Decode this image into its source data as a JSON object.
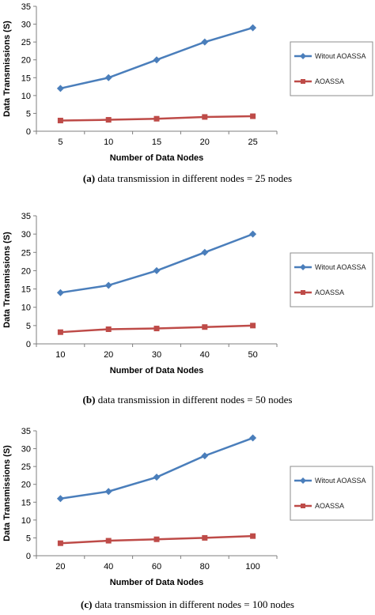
{
  "chart_data": [
    {
      "type": "line",
      "panel_label": "(a)",
      "caption": "data transmission in different  nodes = 25 nodes",
      "xlabel": "Number of Data Nodes",
      "ylabel": "Data Transmissions  (S)",
      "categories": [
        "5",
        "10",
        "15",
        "20",
        "25"
      ],
      "ylim": [
        0,
        35
      ],
      "yticks": [
        0,
        5,
        10,
        15,
        20,
        25,
        30,
        35
      ],
      "grid": false,
      "legend_position": "right",
      "series": [
        {
          "name": "Witout AOASSA",
          "color": "#4a7ebb",
          "marker": "diamond",
          "values": [
            12,
            15,
            20,
            25,
            29
          ]
        },
        {
          "name": "AOASSA",
          "color": "#be4b48",
          "marker": "square",
          "values": [
            3,
            3.2,
            3.5,
            4,
            4.2
          ]
        }
      ]
    },
    {
      "type": "line",
      "panel_label": "(b)",
      "caption": "data transmission in different  nodes = 50 nodes",
      "xlabel": "Number of Data Nodes",
      "ylabel": "Data Transmissions  (S)",
      "categories": [
        "10",
        "20",
        "30",
        "40",
        "50"
      ],
      "ylim": [
        0,
        35
      ],
      "yticks": [
        0,
        5,
        10,
        15,
        20,
        25,
        30,
        35
      ],
      "grid": false,
      "legend_position": "right",
      "series": [
        {
          "name": "Witout AOASSA",
          "color": "#4a7ebb",
          "marker": "diamond",
          "values": [
            14,
            16,
            20,
            25,
            30
          ]
        },
        {
          "name": "AOASSA",
          "color": "#be4b48",
          "marker": "square",
          "values": [
            3.2,
            4,
            4.2,
            4.6,
            5
          ]
        }
      ]
    },
    {
      "type": "line",
      "panel_label": "(c)",
      "caption": "data transmission in different  nodes = 100 nodes",
      "xlabel": "Number of Data Nodes",
      "ylabel": "Data Transmissions  (S)",
      "categories": [
        "20",
        "40",
        "60",
        "80",
        "100"
      ],
      "ylim": [
        0,
        35
      ],
      "yticks": [
        0,
        5,
        10,
        15,
        20,
        25,
        30,
        35
      ],
      "grid": false,
      "legend_position": "right",
      "series": [
        {
          "name": "Witout AOASSA",
          "color": "#4a7ebb",
          "marker": "diamond",
          "values": [
            16,
            18,
            22,
            28,
            33
          ]
        },
        {
          "name": "AOASSA",
          "color": "#be4b48",
          "marker": "square",
          "values": [
            3.5,
            4.2,
            4.6,
            5,
            5.5
          ]
        }
      ]
    }
  ]
}
